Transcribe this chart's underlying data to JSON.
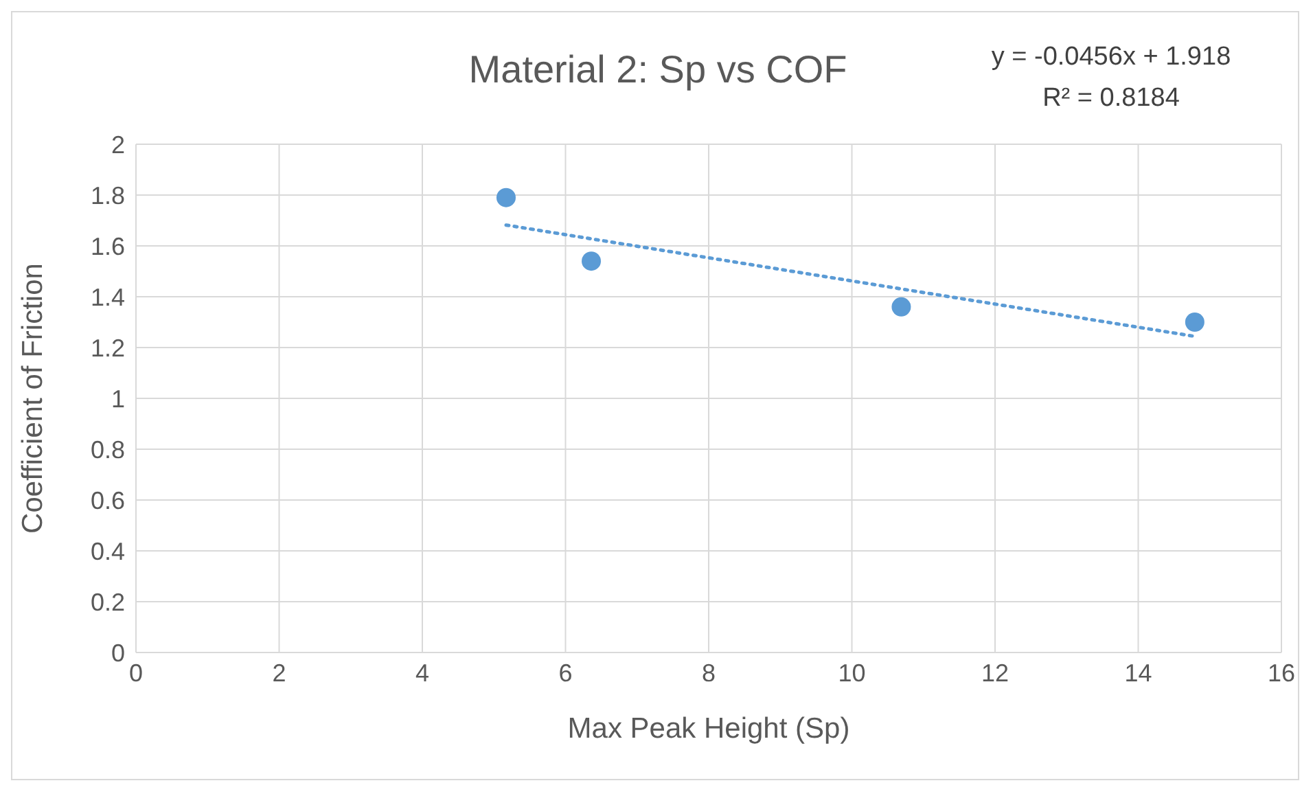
{
  "chart_data": {
    "type": "scatter",
    "title": "Material 2: Sp vs COF",
    "xlabel": "Max Peak Height (Sp)",
    "ylabel": "Coefficient of Friction",
    "annotations": [
      "y = -0.0456x + 1.918",
      "R² = 0.8184"
    ],
    "xlim": [
      0,
      16
    ],
    "xticks": [
      0,
      2,
      4,
      6,
      8,
      10,
      12,
      14,
      16
    ],
    "ylim": [
      0,
      2
    ],
    "yticks": [
      0,
      0.2,
      0.4,
      0.6,
      0.8,
      1,
      1.2,
      1.4,
      1.6,
      1.8,
      2
    ],
    "grid": true,
    "series": [
      {
        "color": "#5b9bd5",
        "marker": "circle",
        "x": [
          5.17,
          6.36,
          10.69,
          14.79
        ],
        "values": [
          1.79,
          1.54,
          1.36,
          1.3
        ]
      },
      {
        "type": "line",
        "color": "#5b9bd5",
        "marker": "none",
        "line_style": "dotted",
        "x": [
          5.17,
          14.79
        ],
        "values": [
          1.682,
          1.244
        ]
      }
    ]
  }
}
